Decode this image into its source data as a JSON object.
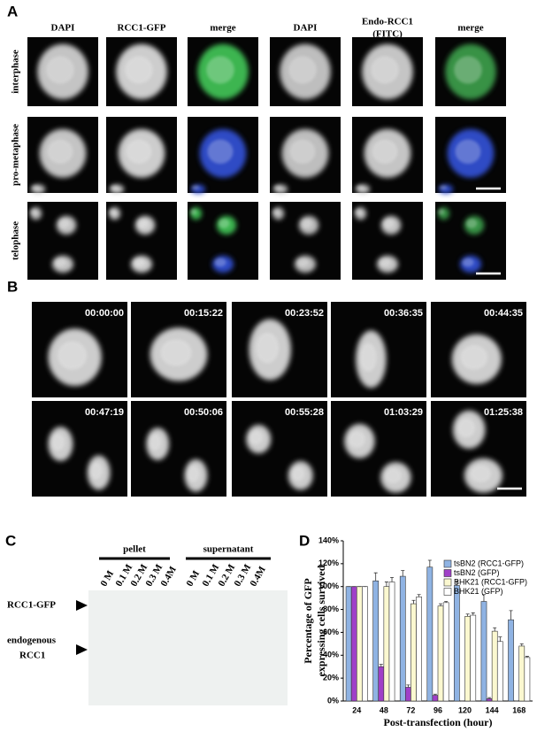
{
  "panel_labels": [
    "A",
    "B",
    "C",
    "D"
  ],
  "panel_a": {
    "column_headers": [
      [
        "DAPI"
      ],
      [
        "RCC1-GFP"
      ],
      [
        "merge"
      ],
      [
        "DAPI"
      ],
      [
        "Endo-RCC1",
        "(FITC)"
      ],
      [
        "merge"
      ]
    ],
    "row_labels": [
      "interphase",
      "pro-metaphase",
      "telophase"
    ]
  },
  "panel_b": {
    "timestamps": [
      "00:00:00",
      "00:15:22",
      "00:23:52",
      "00:36:35",
      "00:44:35",
      "00:47:19",
      "00:50:06",
      "00:55:28",
      "01:03:29",
      "01:25:38"
    ]
  },
  "panel_c": {
    "groups": [
      "pellet",
      "supernatant"
    ],
    "lanes": [
      "0 M",
      "0.1 M",
      "0.2 M",
      "0.3 M",
      "0.4M",
      "0 M",
      "0.1 M",
      "0.2 M",
      "0.3 M",
      "0.4M"
    ],
    "band_labels": [
      [
        "RCC1-GFP"
      ],
      [
        "endogenous",
        "RCC1"
      ]
    ]
  },
  "chart_data": {
    "type": "bar",
    "ylabel": [
      "Percentage of GFP",
      "expressing cells survived"
    ],
    "xlabel": "Post-transfection (hour)",
    "categories": [
      "24",
      "48",
      "72",
      "96",
      "120",
      "144",
      "168"
    ],
    "series": [
      {
        "name": "tsBN2 (RCC1-GFP)",
        "color": "#8fb3e3",
        "values": [
          100,
          105,
          109,
          117,
          101,
          87,
          71
        ],
        "errors": [
          0,
          7,
          5,
          6,
          4,
          6,
          8
        ]
      },
      {
        "name": "tsBN2 (GFP)",
        "color": "#a040c8",
        "values": [
          100,
          30,
          12,
          5,
          0,
          2,
          0
        ],
        "errors": [
          0,
          2,
          2,
          1,
          0,
          1,
          0
        ]
      },
      {
        "name": "BHK21 (RCC1-GFP)",
        "color": "#fbf8d0",
        "values": [
          100,
          100,
          85,
          83,
          74,
          61,
          48
        ],
        "errors": [
          0,
          4,
          3,
          2,
          2,
          3,
          2
        ]
      },
      {
        "name": "BHK21 (GFP)",
        "color": "#ffffff",
        "values": [
          100,
          104,
          91,
          86,
          75,
          52,
          38
        ],
        "errors": [
          0,
          4,
          2,
          1,
          2,
          4,
          1
        ]
      }
    ],
    "ylim": [
      0,
      140
    ],
    "yticks": [
      {
        "value": 0,
        "label": "0%"
      },
      {
        "value": 20,
        "label": "20%"
      },
      {
        "value": 40,
        "label": "40%"
      },
      {
        "value": 60,
        "label": "60%"
      },
      {
        "value": 80,
        "label": "80%"
      },
      {
        "value": 100,
        "label": "100%"
      },
      {
        "value": 120,
        "label": "120%"
      },
      {
        "value": 140,
        "label": "140%"
      }
    ],
    "legend": "top-right"
  }
}
